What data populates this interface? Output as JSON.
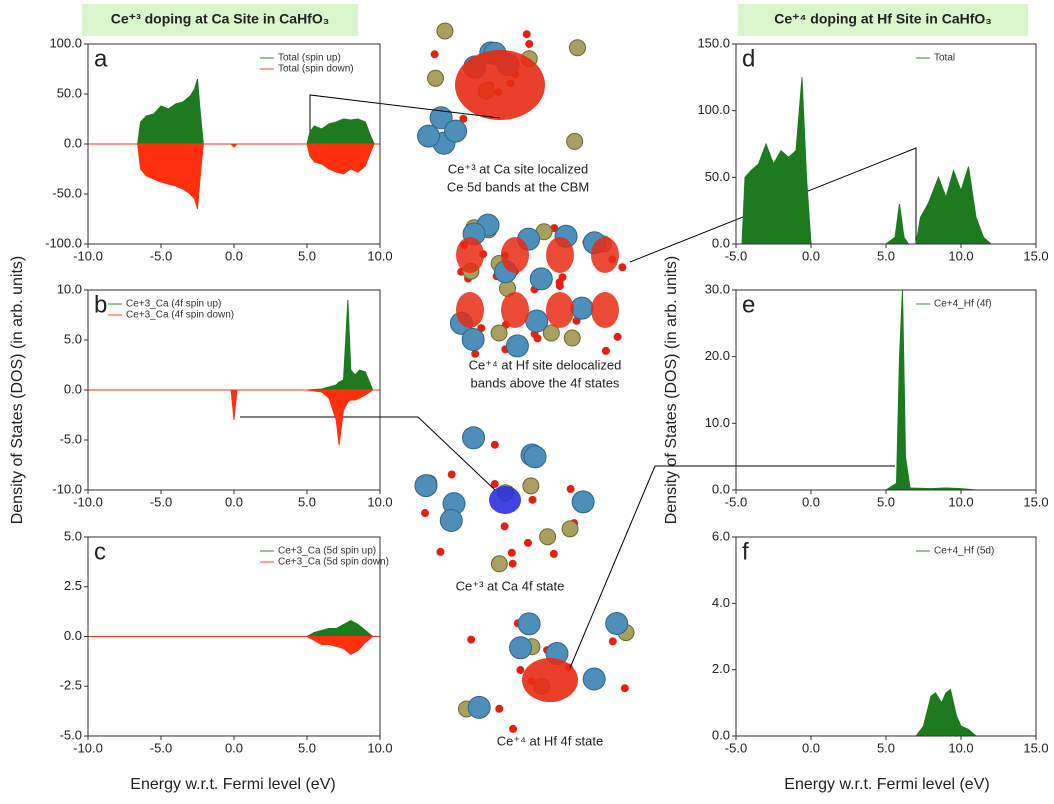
{
  "figure": {
    "left_title": "Ce⁺³ doping at Ca Site in CaHfO₃",
    "right_title": "Ce⁺⁴ doping at Hf Site in CaHfO₃",
    "y_label": "Density of States (DOS) (in  arb. units)",
    "x_label": "Energy w.r.t. Fermi level (eV)",
    "captions": [
      "Ce⁺³ at Ca site localized",
      "Ce 5d bands at the CBM",
      "Ce⁺⁴ at Hf site delocalized",
      "bands above the 4f states",
      "Ce⁺³ at Ca 4f state",
      "Ce⁺⁴ at Hf 4f state"
    ]
  },
  "chart_data": [
    {
      "type": "area",
      "title": "a",
      "legend": "upper right",
      "x": [
        -10,
        -6.6,
        -6.4,
        -6,
        -5.5,
        -5,
        -4.5,
        -4,
        -3.5,
        -3,
        -2.7,
        -2.5,
        -2.3,
        -2.1,
        -1,
        -0.2,
        0,
        0.2,
        1,
        5,
        5.2,
        5.5,
        6,
        6.5,
        7,
        7.5,
        8,
        8.5,
        9,
        9.3,
        9.6,
        10
      ],
      "series": [
        {
          "name": "Total (spin up)",
          "color": "#1e7a1e",
          "values": [
            0,
            0,
            22,
            28,
            30,
            38,
            35,
            40,
            42,
            48,
            55,
            65,
            30,
            0,
            0,
            0,
            0,
            0,
            0,
            0,
            12,
            18,
            15,
            20,
            22,
            25,
            24,
            25,
            22,
            10,
            0,
            0
          ]
        },
        {
          "name": "Total (spin down)",
          "color": "#ff3010",
          "values": [
            0,
            0,
            -25,
            -32,
            -35,
            -38,
            -40,
            -42,
            -45,
            -50,
            -55,
            -65,
            -30,
            0,
            0,
            0,
            -3,
            0,
            0,
            0,
            -12,
            -18,
            -20,
            -25,
            -28,
            -30,
            -25,
            -28,
            -22,
            -10,
            0,
            0
          ]
        }
      ],
      "xlim": [
        -10,
        10
      ],
      "xticks": [
        {
          "value": -10,
          "label": "-10.0"
        },
        {
          "value": -5,
          "label": "-5.0"
        },
        {
          "value": 0,
          "label": "0.0"
        },
        {
          "value": 5,
          "label": "5.0"
        },
        {
          "value": 10,
          "label": "10.0"
        }
      ],
      "ylim": [
        -100,
        100
      ],
      "yticks": [
        {
          "value": -100,
          "label": "-100.0"
        },
        {
          "value": -50,
          "label": "-50.0"
        },
        {
          "value": 0,
          "label": "0.0"
        },
        {
          "value": 50,
          "label": "50.0"
        },
        {
          "value": 100,
          "label": "100.0"
        }
      ]
    },
    {
      "type": "area",
      "title": "b",
      "legend": "upper left",
      "x": [
        -10,
        -1,
        -0.2,
        0,
        0.2,
        1,
        5,
        6,
        6.5,
        7,
        7.2,
        7.5,
        7.8,
        8,
        8.3,
        8.6,
        9,
        9.5,
        10
      ],
      "series": [
        {
          "name": "Ce+3_Ca (4f spin up)",
          "color": "#1e7a1e",
          "values": [
            0,
            0,
            0,
            0,
            0,
            0,
            0,
            0.1,
            0.3,
            0.5,
            0.8,
            1,
            9,
            2,
            1.5,
            2,
            1.8,
            0,
            0
          ]
        },
        {
          "name": "Ce+3_Ca (4f spin down)",
          "color": "#ff3010",
          "values": [
            0,
            0,
            0,
            -3,
            0,
            0,
            0,
            -0.2,
            -0.8,
            -3,
            -5.5,
            -2,
            -1.2,
            -1,
            -1,
            -0.8,
            -0.5,
            0,
            0
          ]
        }
      ],
      "xlim": [
        -10,
        10
      ],
      "xticks": [
        {
          "value": -10,
          "label": "-10.0"
        },
        {
          "value": -5,
          "label": "-5.0"
        },
        {
          "value": 0,
          "label": "0.0"
        },
        {
          "value": 5,
          "label": "5.0"
        },
        {
          "value": 10,
          "label": "10.0"
        }
      ],
      "ylim": [
        -10,
        10
      ],
      "yticks": [
        {
          "value": -10,
          "label": "-10.0"
        },
        {
          "value": -5,
          "label": "-5.0"
        },
        {
          "value": 0,
          "label": "0.0"
        },
        {
          "value": 5,
          "label": "5.0"
        },
        {
          "value": 10,
          "label": "10.0"
        }
      ]
    },
    {
      "type": "area",
      "title": "c",
      "legend": "upper right",
      "x": [
        -10,
        5,
        5.5,
        6,
        6.5,
        7,
        7.5,
        8,
        8.5,
        9,
        9.5,
        10
      ],
      "series": [
        {
          "name": "Ce+3_Ca (5d spin up)",
          "color": "#1e7a1e",
          "values": [
            0,
            0,
            0.2,
            0.3,
            0.4,
            0.4,
            0.6,
            0.8,
            0.6,
            0.3,
            0,
            0
          ]
        },
        {
          "name": "Ce+3_Ca (5d spin down)",
          "color": "#ff3010",
          "values": [
            0,
            0,
            -0.2,
            -0.4,
            -0.4,
            -0.5,
            -0.6,
            -0.9,
            -0.7,
            -0.3,
            0,
            0
          ]
        }
      ],
      "xlim": [
        -10,
        10
      ],
      "xticks": [
        {
          "value": -10,
          "label": "-10.0"
        },
        {
          "value": -5,
          "label": "-5.0"
        },
        {
          "value": 0,
          "label": "0.0"
        },
        {
          "value": 5,
          "label": "5.0"
        },
        {
          "value": 10,
          "label": "10.0"
        }
      ],
      "ylim": [
        -5,
        5
      ],
      "yticks": [
        {
          "value": -5,
          "label": "-5.0"
        },
        {
          "value": -2.5,
          "label": "-2.5"
        },
        {
          "value": 0,
          "label": "0.0"
        },
        {
          "value": 2.5,
          "label": "2.5"
        },
        {
          "value": 5,
          "label": "5.0"
        }
      ]
    },
    {
      "type": "area",
      "title": "d",
      "legend": "upper right",
      "x": [
        -5,
        -4.6,
        -4.4,
        -4,
        -3.5,
        -3,
        -2.5,
        -2,
        -1.5,
        -1,
        -0.6,
        -0.3,
        0,
        5,
        5.6,
        5.9,
        6.2,
        6.5,
        7,
        7.3,
        7.8,
        8.5,
        9,
        9.5,
        10,
        10.5,
        11,
        11.5,
        12,
        15
      ],
      "series": [
        {
          "name": "Total",
          "color": "#1e7a1e",
          "values": [
            0,
            0,
            50,
            55,
            60,
            75,
            60,
            70,
            65,
            70,
            125,
            50,
            0,
            0,
            5,
            30,
            5,
            0,
            0,
            20,
            30,
            50,
            35,
            55,
            40,
            58,
            20,
            5,
            0,
            0
          ]
        }
      ],
      "xlim": [
        -5,
        15
      ],
      "xticks": [
        {
          "value": -5,
          "label": "-5.0"
        },
        {
          "value": 0,
          "label": "0.0"
        },
        {
          "value": 5,
          "label": "5.0"
        },
        {
          "value": 10,
          "label": "10.0"
        },
        {
          "value": 15,
          "label": "15.0"
        }
      ],
      "ylim": [
        0,
        150
      ],
      "yticks": [
        {
          "value": 0,
          "label": "0.0"
        },
        {
          "value": 50,
          "label": "50.0"
        },
        {
          "value": 100,
          "label": "100.0"
        },
        {
          "value": 150,
          "label": "150.0"
        }
      ]
    },
    {
      "type": "area",
      "title": "e",
      "legend": "upper right",
      "x": [
        -5,
        5,
        5.7,
        5.9,
        6.1,
        6.3,
        6.6,
        8,
        9,
        10,
        11,
        15
      ],
      "series": [
        {
          "name": "Ce+4_Hf (4f)",
          "color": "#1e7a1e",
          "values": [
            0,
            0,
            1,
            20,
            30,
            5,
            0.3,
            0.2,
            0.3,
            0.2,
            0,
            0
          ]
        }
      ],
      "xlim": [
        -5,
        15
      ],
      "xticks": [
        {
          "value": -5,
          "label": "-5.0"
        },
        {
          "value": 0,
          "label": "0.0"
        },
        {
          "value": 5,
          "label": "5.0"
        },
        {
          "value": 10,
          "label": "10.0"
        },
        {
          "value": 15,
          "label": "15.0"
        }
      ],
      "ylim": [
        0,
        30
      ],
      "yticks": [
        {
          "value": 0,
          "label": "0.0"
        },
        {
          "value": 10,
          "label": "10.0"
        },
        {
          "value": 20,
          "label": "20.0"
        },
        {
          "value": 30,
          "label": "30.0"
        }
      ]
    },
    {
      "type": "area",
      "title": "f",
      "legend": "upper right",
      "x": [
        -5,
        7,
        7.5,
        8,
        8.3,
        8.7,
        9,
        9.3,
        9.7,
        10,
        10.5,
        11,
        15
      ],
      "series": [
        {
          "name": "Ce+4_Hf (5d)",
          "color": "#1e7a1e",
          "values": [
            0,
            0,
            0.3,
            1.2,
            1.3,
            1.0,
            1.3,
            1.4,
            0.6,
            0.3,
            0.2,
            0,
            0
          ]
        }
      ],
      "xlim": [
        -5,
        15
      ],
      "xticks": [
        {
          "value": -5,
          "label": "-5.0"
        },
        {
          "value": 0,
          "label": "0.0"
        },
        {
          "value": 5,
          "label": "5.0"
        },
        {
          "value": 10,
          "label": "10.0"
        },
        {
          "value": 15,
          "label": "15.0"
        }
      ],
      "ylim": [
        0,
        6
      ],
      "yticks": [
        {
          "value": 0,
          "label": "0.0"
        },
        {
          "value": 2,
          "label": "2.0"
        },
        {
          "value": 4,
          "label": "4.0"
        },
        {
          "value": 6,
          "label": "6.0"
        }
      ]
    }
  ]
}
